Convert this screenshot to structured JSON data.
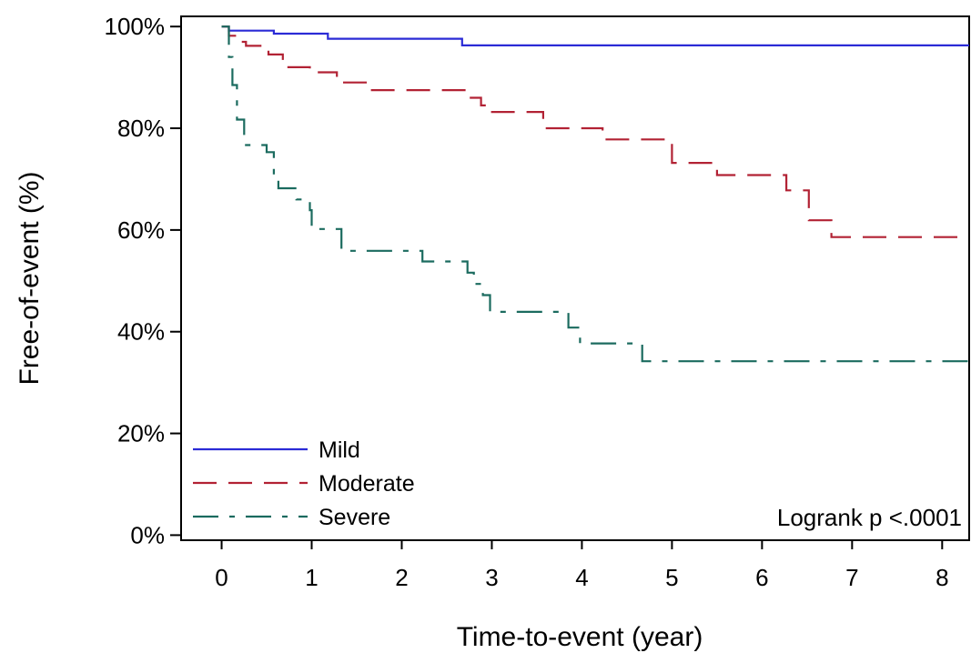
{
  "chart_data": {
    "type": "line",
    "step": true,
    "xlabel": "Time-to-event (year)",
    "ylabel": "Free-of-event (%)",
    "xlim": [
      -0.45,
      8.3
    ],
    "ylim": [
      -1,
      102
    ],
    "x_ticks": [
      0,
      1,
      2,
      3,
      4,
      5,
      6,
      7,
      8
    ],
    "x_tick_labels": [
      "0",
      "1",
      "2",
      "3",
      "4",
      "5",
      "6",
      "7",
      "8"
    ],
    "y_ticks": [
      0,
      20,
      40,
      60,
      80,
      100
    ],
    "y_tick_labels": [
      "0%",
      "20%",
      "40%",
      "60%",
      "80%",
      "100%"
    ],
    "grid": false,
    "legend_position": "bottom-left",
    "annotation": "Logrank p <.0001",
    "series": [
      {
        "name": "Mild",
        "color": "#2b2bd6",
        "dash": "solid",
        "points": [
          [
            0,
            100
          ],
          [
            0.08,
            100
          ],
          [
            0.08,
            99.2
          ],
          [
            0.58,
            99.2
          ],
          [
            0.58,
            98.6
          ],
          [
            1.18,
            98.6
          ],
          [
            1.18,
            97.6
          ],
          [
            2.67,
            97.6
          ],
          [
            2.67,
            96.3
          ],
          [
            8.3,
            96.3
          ]
        ]
      },
      {
        "name": "Moderate",
        "color": "#b22234",
        "dash": "long-dash",
        "points": [
          [
            0,
            100
          ],
          [
            0.08,
            100
          ],
          [
            0.08,
            98.2
          ],
          [
            0.2,
            98.2
          ],
          [
            0.2,
            97.0
          ],
          [
            0.27,
            97.0
          ],
          [
            0.27,
            96.2
          ],
          [
            0.52,
            96.2
          ],
          [
            0.52,
            94.5
          ],
          [
            0.68,
            94.5
          ],
          [
            0.68,
            92.0
          ],
          [
            0.98,
            92.0
          ],
          [
            0.98,
            91.0
          ],
          [
            1.28,
            91.0
          ],
          [
            1.28,
            89.0
          ],
          [
            1.62,
            89.0
          ],
          [
            1.62,
            87.5
          ],
          [
            2.75,
            87.5
          ],
          [
            2.75,
            86.0
          ],
          [
            2.88,
            86.0
          ],
          [
            2.88,
            84.5
          ],
          [
            2.98,
            84.5
          ],
          [
            2.98,
            83.2
          ],
          [
            3.57,
            83.2
          ],
          [
            3.57,
            80.0
          ],
          [
            4.23,
            80.0
          ],
          [
            4.23,
            77.8
          ],
          [
            5.0,
            77.8
          ],
          [
            5.0,
            73.2
          ],
          [
            5.5,
            73.2
          ],
          [
            5.5,
            70.8
          ],
          [
            6.27,
            70.8
          ],
          [
            6.27,
            67.8
          ],
          [
            6.52,
            67.8
          ],
          [
            6.52,
            61.9
          ],
          [
            6.77,
            61.9
          ],
          [
            6.77,
            58.6
          ],
          [
            8.3,
            58.6
          ]
        ]
      },
      {
        "name": "Severe",
        "color": "#1b6b5f",
        "dash": "dash-dot",
        "points": [
          [
            0,
            100
          ],
          [
            0.08,
            100
          ],
          [
            0.08,
            94.0
          ],
          [
            0.12,
            94.0
          ],
          [
            0.12,
            88.5
          ],
          [
            0.17,
            88.5
          ],
          [
            0.17,
            81.7
          ],
          [
            0.25,
            81.7
          ],
          [
            0.25,
            76.7
          ],
          [
            0.5,
            76.7
          ],
          [
            0.5,
            75.3
          ],
          [
            0.58,
            75.3
          ],
          [
            0.58,
            70.5
          ],
          [
            0.63,
            70.5
          ],
          [
            0.63,
            68.2
          ],
          [
            0.83,
            68.2
          ],
          [
            0.83,
            66.0
          ],
          [
            0.98,
            66.0
          ],
          [
            0.98,
            63.9
          ],
          [
            1.0,
            63.9
          ],
          [
            1.0,
            60.2
          ],
          [
            1.33,
            60.2
          ],
          [
            1.33,
            55.9
          ],
          [
            2.23,
            55.9
          ],
          [
            2.23,
            53.8
          ],
          [
            2.73,
            53.8
          ],
          [
            2.73,
            51.6
          ],
          [
            2.8,
            51.6
          ],
          [
            2.8,
            49.4
          ],
          [
            2.9,
            49.4
          ],
          [
            2.9,
            47.2
          ],
          [
            2.98,
            47.2
          ],
          [
            2.98,
            43.9
          ],
          [
            3.85,
            43.9
          ],
          [
            3.85,
            40.8
          ],
          [
            3.98,
            40.8
          ],
          [
            3.98,
            37.7
          ],
          [
            4.67,
            37.7
          ],
          [
            4.67,
            34.2
          ],
          [
            8.3,
            34.2
          ]
        ]
      }
    ]
  }
}
